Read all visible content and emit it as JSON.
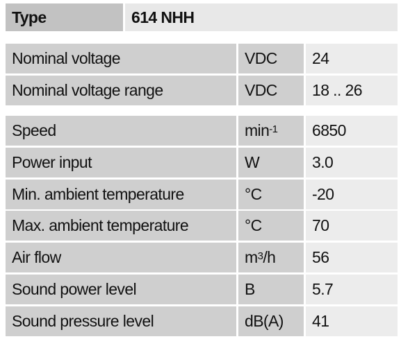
{
  "header": {
    "label": "Type",
    "value": "614 NHH"
  },
  "groups": [
    [
      {
        "name": "Nominal voltage",
        "unit": "VDC",
        "value": "24"
      },
      {
        "name": "Nominal voltage range",
        "unit": "VDC",
        "value": "18 .. 26"
      }
    ],
    [
      {
        "name": "Speed",
        "unit": {
          "base": "min",
          "sup": "-1"
        },
        "value": "6850"
      },
      {
        "name": "Power input",
        "unit": "W",
        "value": "3.0"
      },
      {
        "name": "Min. ambient temperature",
        "unit": "°C",
        "value": "-20"
      },
      {
        "name": "Max. ambient temperature",
        "unit": "°C",
        "value": "70"
      },
      {
        "name": "Air flow",
        "unit": {
          "base": "m",
          "sup": "3",
          "rest": "/h"
        },
        "value": "56"
      },
      {
        "name": "Sound power level",
        "unit": "B",
        "value": "5.7"
      },
      {
        "name": "Sound pressure level",
        "unit": "dB(A)",
        "value": "41"
      }
    ]
  ]
}
